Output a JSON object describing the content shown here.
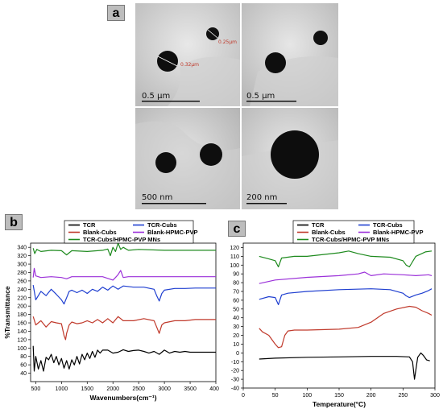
{
  "figure": {
    "panel_labels": {
      "a": "a",
      "b": "b",
      "c": "c"
    },
    "tem_images": [
      {
        "scale_bar": "0.5 µm",
        "measurements": [
          "0.25µm",
          "0.32µm"
        ]
      },
      {
        "scale_bar": "0.5 µm",
        "measurements": []
      },
      {
        "scale_bar": "500 nm",
        "measurements": []
      },
      {
        "scale_bar": "200 nm",
        "measurements": []
      }
    ]
  },
  "chart_data": [
    {
      "type": "line",
      "panel": "b",
      "xlabel": "Wavenumbers(cm⁻¹)",
      "ylabel": "%Transmittance",
      "xlim": [
        400,
        4000
      ],
      "ylim": [
        20,
        350
      ],
      "xticks": [
        500,
        1000,
        1500,
        2000,
        2500,
        3000,
        3500,
        4000
      ],
      "yticks": [
        40,
        60,
        80,
        100,
        120,
        140,
        160,
        180,
        200,
        220,
        240,
        260,
        280,
        300,
        320,
        340
      ],
      "legend_position": "top-center",
      "series": [
        {
          "name": "TCR",
          "color": "#000000",
          "x": [
            450,
            470,
            500,
            550,
            600,
            650,
            700,
            750,
            800,
            850,
            900,
            950,
            1000,
            1050,
            1100,
            1150,
            1200,
            1250,
            1300,
            1350,
            1400,
            1450,
            1500,
            1550,
            1600,
            1650,
            1700,
            1750,
            1800,
            1900,
            2000,
            2100,
            2200,
            2300,
            2400,
            2500,
            2600,
            2700,
            2800,
            2900,
            3000,
            3100,
            3200,
            3300,
            3400,
            3500,
            4000
          ],
          "y": [
            105,
            45,
            80,
            50,
            70,
            45,
            78,
            72,
            85,
            65,
            80,
            60,
            75,
            52,
            70,
            50,
            72,
            60,
            80,
            62,
            85,
            72,
            88,
            75,
            92,
            78,
            95,
            88,
            95,
            95,
            88,
            90,
            96,
            92,
            94,
            95,
            92,
            88,
            92,
            85,
            95,
            88,
            92,
            90,
            92,
            90,
            90
          ]
        },
        {
          "name": "Blank-Cubs",
          "color": "#c0392b",
          "x": [
            450,
            500,
            600,
            700,
            800,
            900,
            1000,
            1050,
            1080,
            1100,
            1150,
            1200,
            1300,
            1400,
            1500,
            1600,
            1700,
            1800,
            1900,
            2000,
            2100,
            2200,
            2400,
            2600,
            2800,
            2850,
            2900,
            2950,
            3000,
            3200,
            3400,
            3600,
            4000
          ],
          "y": [
            175,
            155,
            165,
            150,
            163,
            160,
            158,
            130,
            120,
            135,
            155,
            162,
            158,
            160,
            165,
            160,
            168,
            160,
            170,
            160,
            175,
            165,
            165,
            170,
            165,
            150,
            135,
            155,
            160,
            165,
            165,
            168,
            168
          ]
        },
        {
          "name": "TCR-Cubs",
          "color": "#1f3fd0",
          "x": [
            450,
            500,
            600,
            700,
            800,
            900,
            1000,
            1050,
            1100,
            1150,
            1200,
            1300,
            1400,
            1500,
            1600,
            1700,
            1800,
            1900,
            2000,
            2100,
            2200,
            2400,
            2600,
            2800,
            2850,
            2900,
            2950,
            3000,
            3200,
            3400,
            3600,
            4000
          ],
          "y": [
            250,
            215,
            235,
            225,
            240,
            228,
            215,
            205,
            220,
            235,
            238,
            232,
            238,
            230,
            240,
            235,
            245,
            238,
            248,
            240,
            248,
            245,
            245,
            240,
            225,
            212,
            230,
            238,
            242,
            242,
            243,
            243
          ]
        },
        {
          "name": "Blank-HPMC-PVP",
          "color": "#9b30d9",
          "x": [
            450,
            470,
            500,
            600,
            800,
            1000,
            1100,
            1200,
            1500,
            1800,
            1900,
            2000,
            2050,
            2100,
            2150,
            2200,
            2300,
            2500,
            3000,
            3500,
            4000
          ],
          "y": [
            268,
            290,
            272,
            268,
            270,
            268,
            265,
            270,
            270,
            270,
            266,
            262,
            268,
            275,
            285,
            268,
            270,
            270,
            270,
            270,
            270
          ]
        },
        {
          "name": "TCR-Cubs/HPMC-PVP MNs",
          "color": "#1e8a1e",
          "x": [
            450,
            480,
            520,
            600,
            800,
            1000,
            1100,
            1200,
            1500,
            1800,
            1900,
            1950,
            2000,
            2050,
            2100,
            2150,
            2200,
            2300,
            2500,
            3000,
            3500,
            4000
          ],
          "y": [
            338,
            325,
            335,
            330,
            333,
            332,
            322,
            332,
            330,
            333,
            336,
            320,
            340,
            330,
            350,
            335,
            340,
            333,
            335,
            333,
            333,
            333
          ]
        }
      ]
    },
    {
      "type": "line",
      "panel": "c",
      "xlabel": "Temperature(°C)",
      "ylabel": "Heat flow (mW)",
      "xlim": [
        0,
        300
      ],
      "ylim": [
        -40,
        125
      ],
      "xticks": [
        0,
        50,
        100,
        150,
        200,
        250,
        300
      ],
      "yticks": [
        -40,
        -30,
        -20,
        -10,
        0,
        10,
        20,
        30,
        40,
        50,
        60,
        70,
        80,
        90,
        100,
        110,
        120
      ],
      "legend_position": "top-center",
      "series": [
        {
          "name": "TCR",
          "color": "#000000",
          "x": [
            25,
            50,
            100,
            150,
            200,
            240,
            260,
            265,
            268,
            270,
            273,
            278,
            282,
            287,
            292
          ],
          "y": [
            -7,
            -6,
            -5,
            -4.5,
            -4,
            -4,
            -4.5,
            -10,
            -30,
            -20,
            -5,
            0,
            -3,
            -8,
            -9
          ]
        },
        {
          "name": "Blank-Cubs",
          "color": "#c0392b",
          "x": [
            25,
            30,
            40,
            50,
            55,
            60,
            65,
            70,
            80,
            100,
            150,
            180,
            200,
            220,
            240,
            260,
            270,
            280,
            290,
            295
          ],
          "y": [
            28,
            24,
            20,
            10,
            6,
            7,
            20,
            25,
            26,
            26,
            27,
            29,
            35,
            45,
            50,
            53,
            52,
            48,
            45,
            43
          ]
        },
        {
          "name": "TCR-Cubs",
          "color": "#1f3fd0",
          "x": [
            25,
            40,
            50,
            55,
            60,
            70,
            100,
            150,
            200,
            230,
            250,
            255,
            260,
            270,
            280,
            290,
            295
          ],
          "y": [
            61,
            64,
            63,
            55,
            66,
            68,
            70,
            72,
            73,
            72,
            68,
            65,
            63,
            66,
            68,
            71,
            73
          ]
        },
        {
          "name": "Blank-HPMC-PVP",
          "color": "#9b30d9",
          "x": [
            25,
            50,
            100,
            150,
            180,
            190,
            200,
            220,
            250,
            270,
            290,
            295
          ],
          "y": [
            79,
            83,
            86,
            88,
            90,
            92,
            88,
            90,
            89,
            88,
            89,
            88
          ]
        },
        {
          "name": "TCR-Cubs/HPMC-PVP MNs",
          "color": "#1e8a1e",
          "x": [
            25,
            40,
            50,
            55,
            60,
            80,
            100,
            150,
            165,
            180,
            200,
            230,
            250,
            255,
            260,
            270,
            285,
            295
          ],
          "y": [
            110,
            107,
            105,
            98,
            108,
            110,
            110,
            114,
            116,
            113,
            110,
            109,
            105,
            100,
            98,
            110,
            115,
            116
          ]
        }
      ]
    }
  ]
}
